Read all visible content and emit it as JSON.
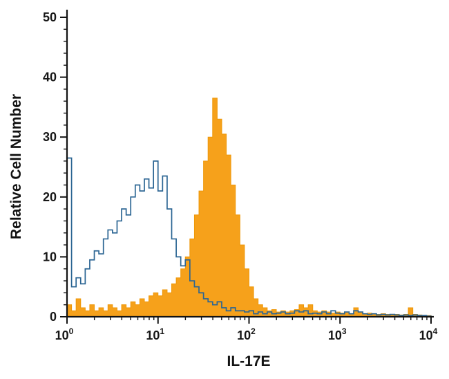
{
  "chart_data": {
    "type": "histogram",
    "title": "",
    "xlabel": "IL-17E",
    "ylabel": "Relative Cell Number",
    "x_scale": "log10",
    "x_log10_range": [
      0,
      4
    ],
    "ylim": [
      0,
      50
    ],
    "grid": false,
    "legend": "none",
    "y_major_ticks": [
      0,
      10,
      20,
      30,
      40,
      50
    ],
    "y_minor_step": 2,
    "x_major_tick_exponents": [
      0,
      1,
      2,
      3,
      4
    ],
    "x_minor_ticks_per_decade": [
      2,
      3,
      4,
      5,
      6,
      7,
      8,
      9
    ],
    "bin_log10_start": 0,
    "bin_log10_step": 0.05,
    "axis_color": "#121212",
    "series": [
      {
        "name": "filled-histogram",
        "style": "filled",
        "color": "#F6A11B",
        "stroke": "#EE9708",
        "peak_x_approx": 40,
        "peak_y_approx": 36.5,
        "values": [
          2,
          1,
          3,
          1.5,
          1,
          2,
          1,
          1.5,
          1,
          2,
          1.5,
          1,
          2,
          1.5,
          2.5,
          2,
          3,
          2.5,
          3.5,
          4,
          3.5,
          4.5,
          4,
          5.5,
          6.5,
          8,
          10,
          13,
          17,
          21,
          26,
          30,
          36.5,
          33,
          30.5,
          27,
          22,
          17,
          12,
          8,
          5,
          3,
          2,
          1.5,
          1,
          1.2,
          0.8,
          1,
          0.8,
          1,
          1.2,
          2,
          1.5,
          2,
          1,
          0.8,
          1,
          0.8,
          0.6,
          0.8,
          0.6,
          0.8,
          0.5,
          1.5,
          0.8,
          0.5,
          0.6,
          0.5,
          0.4,
          0.5,
          0.4,
          0.3,
          0.4,
          0.3,
          0.4,
          1.5,
          0.4,
          0.3,
          0.2,
          0.2
        ]
      },
      {
        "name": "open-histogram",
        "style": "open",
        "color": "#2B6593",
        "peak_x_approx": 9,
        "peak_y_approx": 26,
        "values": [
          26.5,
          5,
          6.5,
          5.5,
          8,
          9.5,
          11,
          10.5,
          13,
          14.5,
          14,
          16,
          18,
          17,
          20,
          22,
          21,
          23,
          21.5,
          26,
          21,
          23.5,
          18,
          13,
          10,
          8.5,
          9.5,
          6,
          5,
          4,
          3,
          2.5,
          2,
          2.5,
          1.5,
          1,
          1.5,
          1,
          1,
          0.8,
          1,
          0.5,
          0.8,
          0.5,
          0.8,
          0.5,
          0.6,
          0.8,
          0.5,
          0.6,
          1,
          0.8,
          1,
          0.5,
          0.6,
          0.5,
          0.8,
          0.5,
          1,
          0.6,
          0.5,
          0.8,
          0.5,
          1,
          0.8,
          0.5,
          0.4,
          0.5,
          0.3,
          0.4,
          0.3,
          0.4,
          0.3,
          0.2,
          0.3,
          0.2,
          0.3,
          0.2,
          0.2,
          0.1
        ]
      }
    ]
  }
}
